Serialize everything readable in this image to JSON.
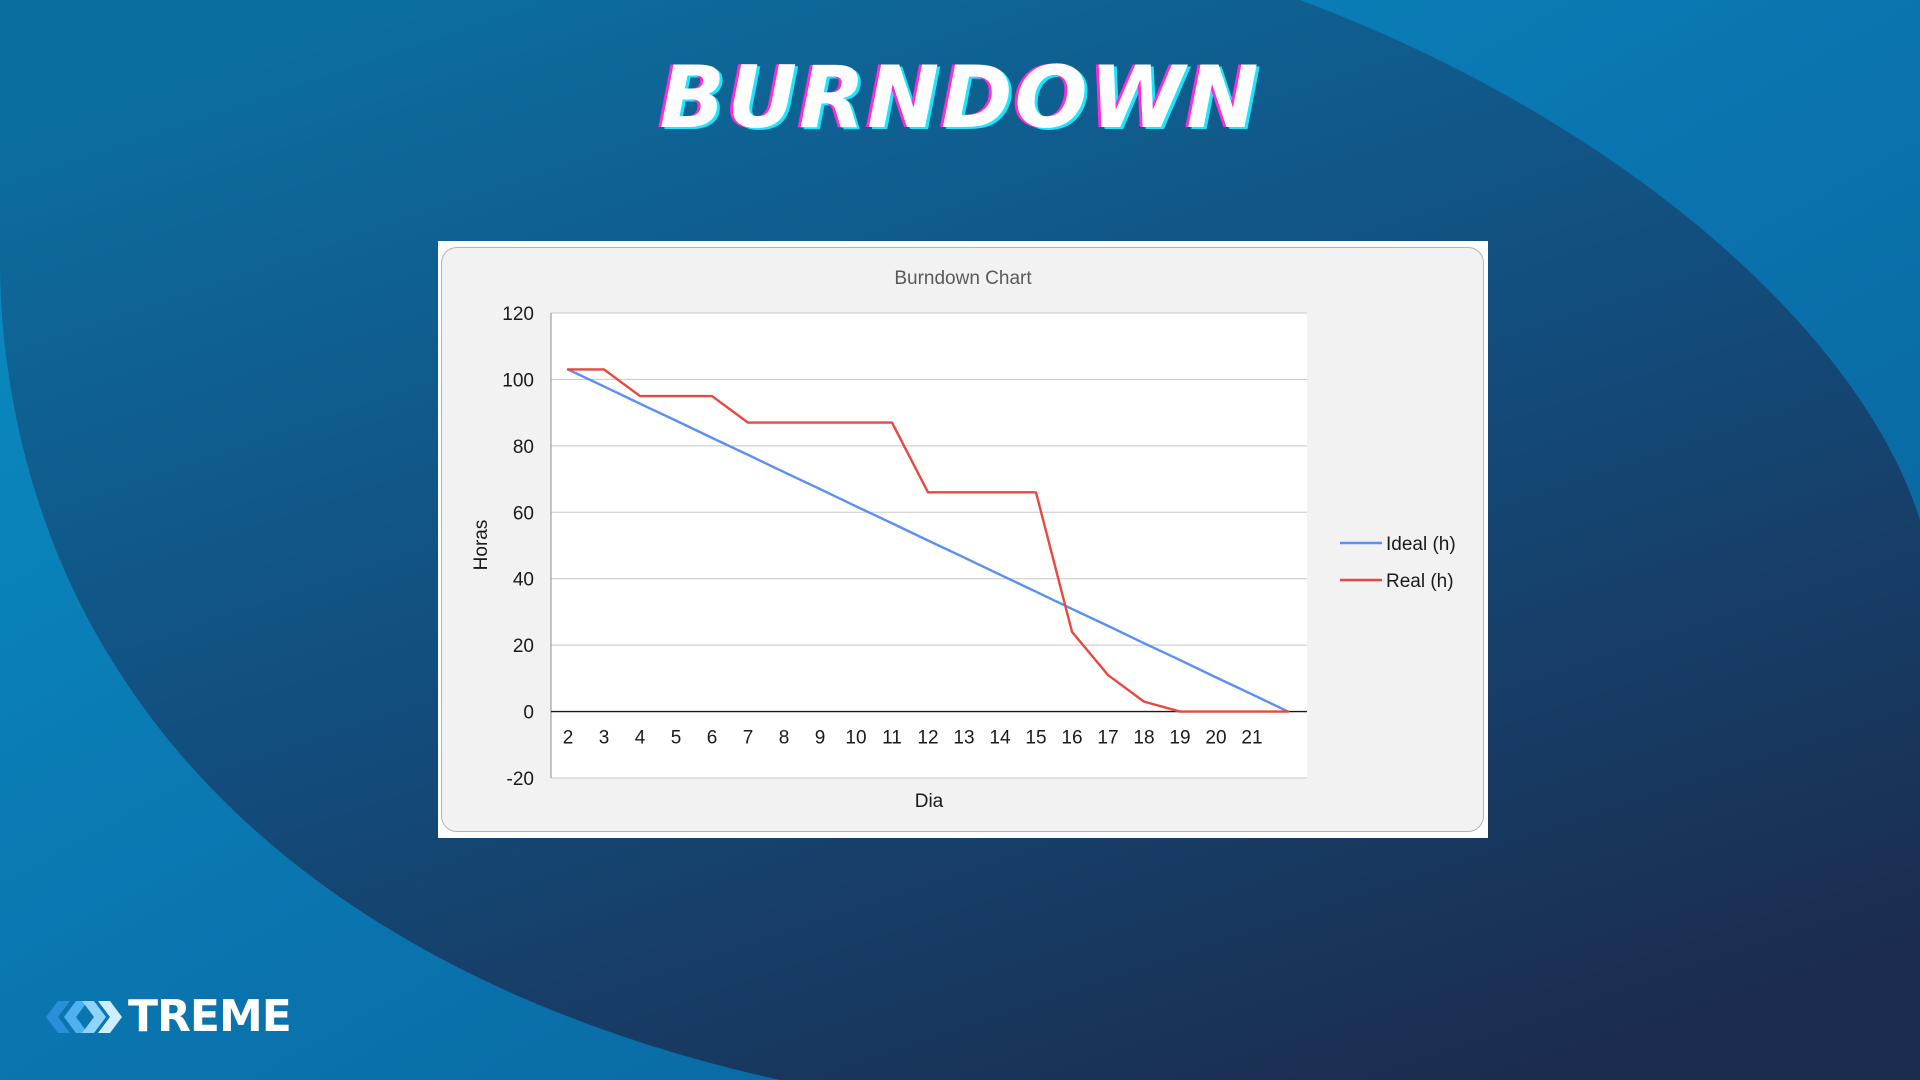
{
  "slide": {
    "title": "BURNDOWN",
    "logo_text": "TREME",
    "logo_glyph": "X"
  },
  "colors": {
    "ideal": "#5b8ff0",
    "real": "#e8483f",
    "background_light": "#0a8fc4",
    "background_dark": "#1b2c4e"
  },
  "chart_data": {
    "type": "line",
    "title": "Burndown Chart",
    "xlabel": "Dia",
    "ylabel": "Horas",
    "categories": [
      "2",
      "3",
      "4",
      "5",
      "6",
      "7",
      "8",
      "9",
      "10",
      "11",
      "12",
      "13",
      "14",
      "15",
      "16",
      "17",
      "18",
      "19",
      "20",
      "21",
      ""
    ],
    "ylim": [
      -20,
      120
    ],
    "yticks": [
      120,
      100,
      80,
      60,
      40,
      20,
      0,
      -20
    ],
    "grid": true,
    "legend_position": "right",
    "series": [
      {
        "name": "Ideal (h)",
        "values": [
          103,
          97.9,
          92.7,
          87.6,
          82.4,
          77.3,
          72.1,
          67,
          61.8,
          56.7,
          51.5,
          46.4,
          41.2,
          36.1,
          30.9,
          25.8,
          20.6,
          15.5,
          10.3,
          5.2,
          0
        ]
      },
      {
        "name": "Real (h)",
        "values": [
          103,
          103,
          95,
          95,
          95,
          87,
          87,
          87,
          87,
          87,
          66,
          66,
          66,
          66,
          24,
          11,
          3,
          0,
          0,
          0,
          0
        ]
      }
    ]
  }
}
